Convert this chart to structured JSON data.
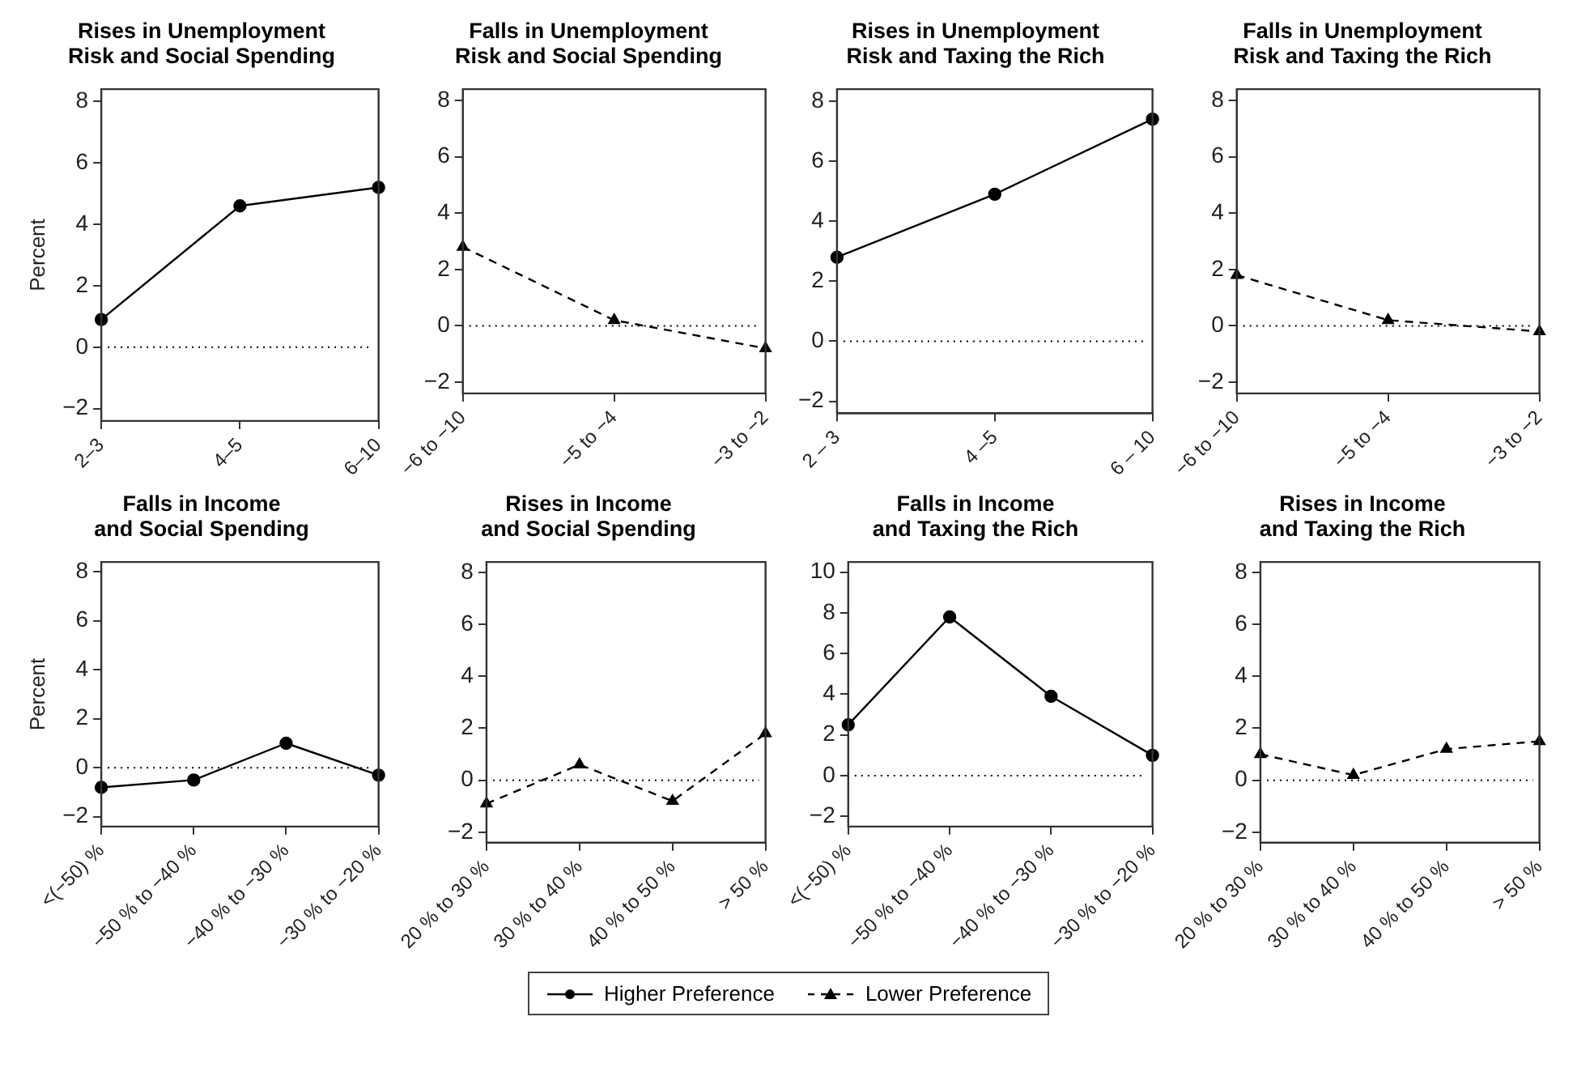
{
  "chart_data": [
    {
      "type": "line",
      "title": "Rises in Unemployment Risk and Social Spending",
      "ylabel": "Percent",
      "categories": [
        "2–3",
        "4–5",
        "6–10"
      ],
      "series": [
        {
          "name": "Higher Preference",
          "color": "#000000",
          "values": [
            0.9,
            4.6,
            5.2
          ]
        }
      ],
      "marker": "circle",
      "line_style": "solid",
      "ylim": [
        -2.4,
        8.4
      ],
      "yticks": [
        -2,
        0,
        2,
        4,
        6,
        8
      ],
      "grid": false,
      "ref_lines": [
        {
          "axis": "y",
          "value": 0,
          "line_style": "dotted",
          "color": "#000000"
        }
      ]
    },
    {
      "type": "line",
      "title": "Falls in Unemployment Risk and Social Spending",
      "categories": [
        "−6 to −10",
        "−5 to −4",
        "−3 to −2"
      ],
      "series": [
        {
          "name": "Lower Preference",
          "color": "#000000",
          "values": [
            2.8,
            0.2,
            -0.8
          ]
        }
      ],
      "marker": "triangle",
      "line_style": "dashed",
      "ylim": [
        -2.4,
        8.4
      ],
      "yticks": [
        -2,
        0,
        2,
        4,
        6,
        8
      ],
      "grid": false,
      "ref_lines": [
        {
          "axis": "y",
          "value": 0,
          "line_style": "dotted",
          "color": "#000000"
        }
      ]
    },
    {
      "type": "line",
      "title": "Rises in Unemployment Risk and Taxing the Rich",
      "categories": [
        "2 – 3",
        "4 –5",
        "6 – 10"
      ],
      "series": [
        {
          "name": "Higher Preference",
          "color": "#000000",
          "values": [
            2.8,
            4.9,
            7.4
          ]
        }
      ],
      "marker": "circle",
      "line_style": "solid",
      "ylim": [
        -2.4,
        8.4
      ],
      "yticks": [
        -2,
        0,
        2,
        4,
        6,
        8
      ],
      "grid": false,
      "ref_lines": [
        {
          "axis": "y",
          "value": 0,
          "line_style": "dotted",
          "color": "#000000"
        }
      ]
    },
    {
      "type": "line",
      "title": "Falls in Unemployment Risk and Taxing the Rich",
      "categories": [
        "−6 to −10",
        "−5 to −4",
        "−3 to −2"
      ],
      "series": [
        {
          "name": "Lower Preference",
          "color": "#000000",
          "values": [
            1.8,
            0.2,
            -0.2
          ]
        }
      ],
      "marker": "triangle",
      "line_style": "dashed",
      "ylim": [
        -2.4,
        8.4
      ],
      "yticks": [
        -2,
        0,
        2,
        4,
        6,
        8
      ],
      "grid": false,
      "ref_lines": [
        {
          "axis": "y",
          "value": 0,
          "line_style": "dotted",
          "color": "#000000"
        }
      ]
    },
    {
      "type": "line",
      "title": "Falls in Income and Social Spending",
      "ylabel": "Percent",
      "categories": [
        "<(−50) %",
        "−50 % to −40 %",
        "−40 % to −30 %",
        "−30 % to −20 %"
      ],
      "series": [
        {
          "name": "Higher Preference",
          "color": "#000000",
          "values": [
            -0.8,
            -0.5,
            1.0,
            -0.3
          ]
        }
      ],
      "marker": "circle",
      "line_style": "solid",
      "ylim": [
        -2.4,
        8.4
      ],
      "yticks": [
        -2,
        0,
        2,
        4,
        6,
        8
      ],
      "grid": false,
      "ref_lines": [
        {
          "axis": "y",
          "value": 0,
          "line_style": "dotted",
          "color": "#000000"
        }
      ]
    },
    {
      "type": "line",
      "title": "Rises in Income and Social Spending",
      "categories": [
        "20 % to 30 %",
        "30 % to 40 %",
        "40 % to 50 %",
        "> 50 %"
      ],
      "series": [
        {
          "name": "Lower Preference",
          "color": "#000000",
          "values": [
            -0.9,
            0.6,
            -0.8,
            1.8
          ]
        }
      ],
      "marker": "triangle",
      "line_style": "dashed",
      "ylim": [
        -2.4,
        8.4
      ],
      "yticks": [
        -2,
        0,
        2,
        4,
        6,
        8
      ],
      "grid": false,
      "ref_lines": [
        {
          "axis": "y",
          "value": 0,
          "line_style": "dotted",
          "color": "#000000"
        }
      ]
    },
    {
      "type": "line",
      "title": "Falls in Income and Taxing the Rich",
      "categories": [
        "<(−50) %",
        "−50 % to −40 %",
        "−40 % to −30 %",
        "−30 % to −20 %"
      ],
      "series": [
        {
          "name": "Higher Preference",
          "color": "#000000",
          "values": [
            2.5,
            7.8,
            3.9,
            1.0
          ]
        }
      ],
      "marker": "circle",
      "line_style": "solid",
      "ylim": [
        -2.5,
        10.5
      ],
      "yticks": [
        -2,
        0,
        2,
        4,
        6,
        8,
        10
      ],
      "grid": false,
      "ref_lines": [
        {
          "axis": "y",
          "value": 0,
          "line_style": "dotted",
          "color": "#000000"
        }
      ]
    },
    {
      "type": "line",
      "title": "Rises in Income and Taxing the Rich",
      "categories": [
        "20 % to 30 %",
        "30 % to 40 %",
        "40 % to 50 %",
        "> 50 %"
      ],
      "series": [
        {
          "name": "Lower Preference",
          "color": "#000000",
          "values": [
            1.0,
            0.2,
            1.2,
            1.5
          ]
        }
      ],
      "marker": "triangle",
      "line_style": "dashed",
      "ylim": [
        -2.4,
        8.4
      ],
      "yticks": [
        -2,
        0,
        2,
        4,
        6,
        8
      ],
      "grid": false,
      "ref_lines": [
        {
          "axis": "y",
          "value": 0,
          "line_style": "dotted",
          "color": "#000000"
        }
      ]
    }
  ]
}
